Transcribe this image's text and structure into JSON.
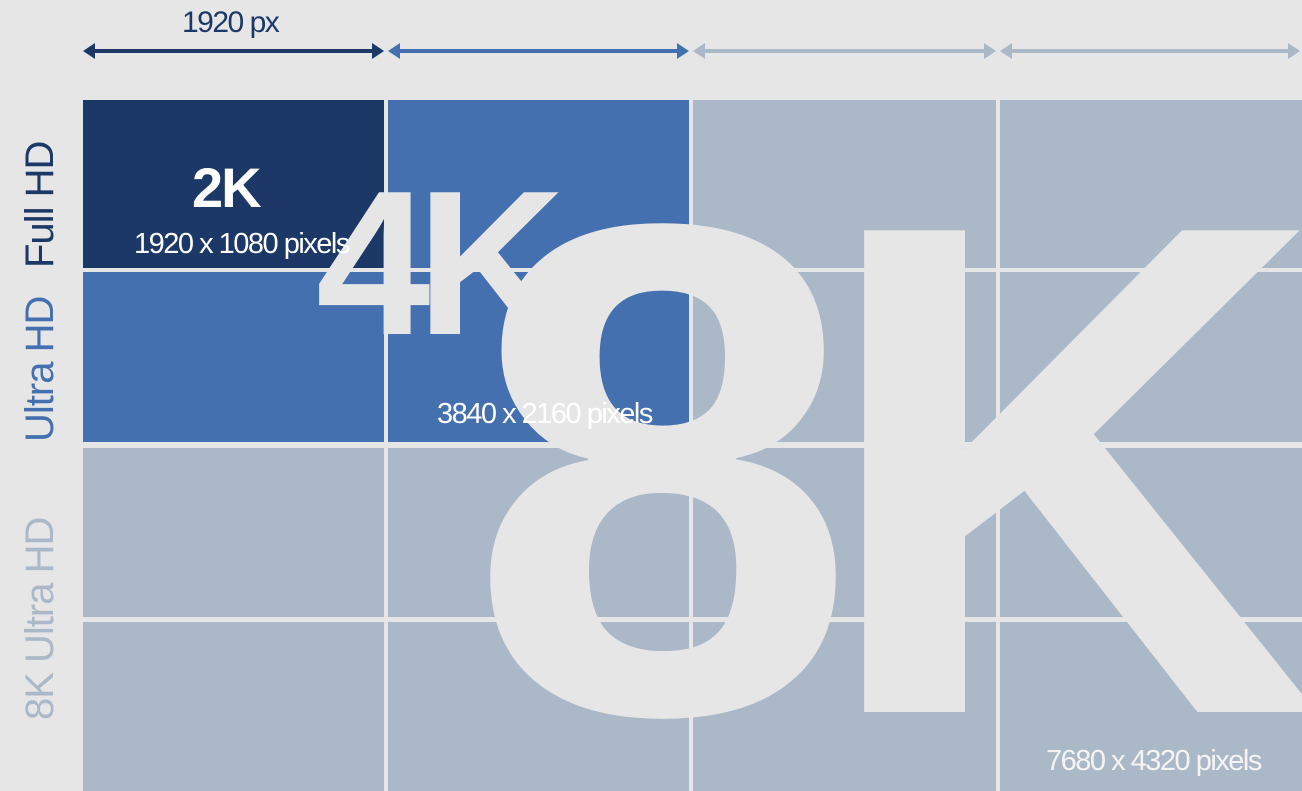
{
  "header": {
    "width_label": "1920 px"
  },
  "labels": {
    "full_hd": "Full HD",
    "ultra_hd": "Ultra HD",
    "ultra_hd_8k": "8K Ultra HD"
  },
  "resolutions": {
    "r2k": {
      "name": "2K",
      "dimensions": "1920 x 1080 pixels"
    },
    "r4k": {
      "name": "4K",
      "dimensions": "3840 x 2160 pixels"
    },
    "r8k": {
      "name": "8K",
      "dimensions": "7680 x 4320 pixels"
    }
  },
  "colors": {
    "background": "#e6e6e6",
    "tile_2k": "#1b3866",
    "tile_4k": "#4570b0",
    "tile_8k": "#abb8c7",
    "arrow_1": "#1b3866",
    "arrow_2": "#4570b0",
    "arrow_3": "#abb8c7",
    "arrow_4": "#abb8c7"
  }
}
